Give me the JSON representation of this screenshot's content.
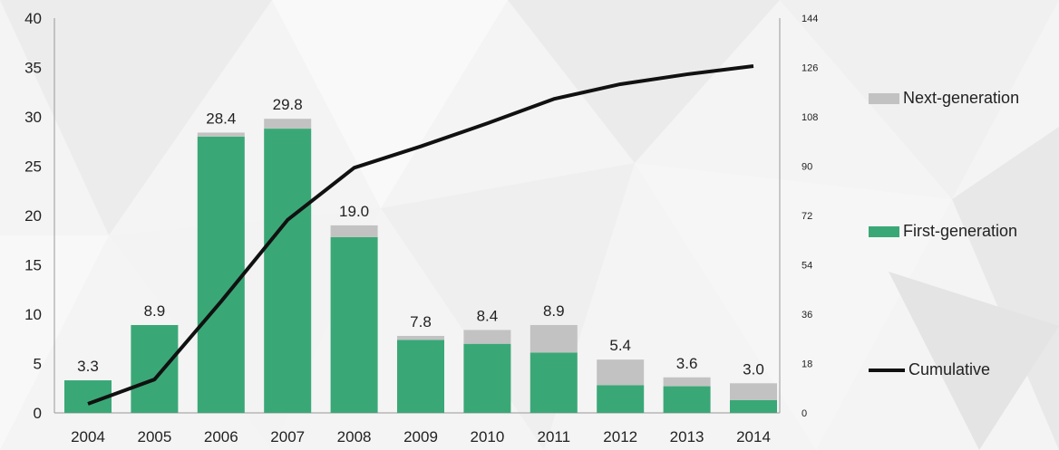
{
  "chart_data": {
    "type": "bar",
    "stacked": true,
    "categories": [
      "2004",
      "2005",
      "2006",
      "2007",
      "2008",
      "2009",
      "2010",
      "2011",
      "2012",
      "2013",
      "2014"
    ],
    "series": [
      {
        "name": "First-generation",
        "color": "#3aa876",
        "values": [
          3.3,
          8.9,
          28.0,
          28.8,
          17.8,
          7.4,
          7.0,
          6.1,
          2.8,
          2.7,
          1.3
        ]
      },
      {
        "name": "Next-generation",
        "color": "#c2c2c2",
        "values": [
          0.0,
          0.0,
          0.4,
          1.0,
          1.2,
          0.4,
          1.4,
          2.8,
          2.6,
          0.9,
          1.7
        ]
      }
    ],
    "totals": [
      "3.3",
      "8.9",
      "28.4",
      "29.8",
      "19.0",
      "7.8",
      "8.4",
      "8.9",
      "5.4",
      "3.6",
      "3.0"
    ],
    "cumulative": {
      "name": "Cumulative",
      "color": "#111111",
      "values": [
        3.3,
        12.2,
        40.6,
        70.4,
        89.4,
        97.2,
        105.6,
        114.5,
        119.9,
        123.5,
        126.5
      ]
    },
    "y_left": {
      "ylim": [
        0,
        40
      ],
      "ticks": [
        "0",
        "5",
        "10",
        "15",
        "20",
        "25",
        "30",
        "35",
        "40"
      ]
    },
    "y_right": {
      "ylim": [
        0,
        144
      ],
      "ticks": [
        "0",
        "18",
        "36",
        "54",
        "72",
        "90",
        "108",
        "126",
        "144"
      ]
    },
    "legend_position": "right",
    "legend": [
      {
        "label": "Next-generation",
        "color": "#c2c2c2"
      },
      {
        "label": "First-generation",
        "color": "#3aa876"
      },
      {
        "label": "Cumulative",
        "color": "#111111"
      }
    ],
    "grid": false
  }
}
